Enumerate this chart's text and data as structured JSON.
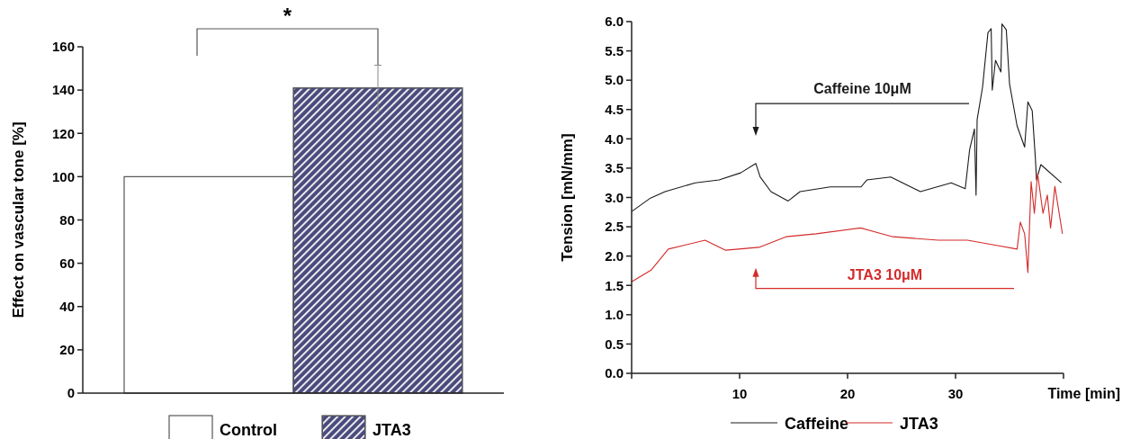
{
  "chart_data": [
    {
      "type": "bar",
      "categories": [
        null,
        null
      ],
      "ylabel": "Effect on vascular tone [%]",
      "ylim": [
        0,
        160
      ],
      "yticks": [
        0,
        20,
        40,
        60,
        80,
        100,
        120,
        140,
        160
      ],
      "tick_labels": "y",
      "legend": "bottom",
      "annotations": [
        "*"
      ],
      "series": [
        {
          "name": "Control",
          "color": "#ffffff",
          "values": [
            100,
            null
          ]
        },
        {
          "name": "JTA3",
          "color": "#4b4b7d",
          "values": [
            null,
            141
          ],
          "errors": [
            null,
            10.5
          ]
        }
      ]
    },
    {
      "type": "line",
      "ylabel": "Tension [mN/mm]",
      "xlabel": "Time [min]",
      "xlim": [
        0,
        40
      ],
      "ylim": [
        0,
        6
      ],
      "xticks": [
        {
          "value": 0,
          "label": null
        },
        10,
        20,
        30,
        {
          "value": 40,
          "label": null
        }
      ],
      "yticks": [
        {
          "value": 0,
          "label": "0.0"
        },
        {
          "value": 0.5,
          "label": "0.5"
        },
        {
          "value": 1,
          "label": "1.0"
        },
        {
          "value": 1.5,
          "label": "1.5"
        },
        {
          "value": 2,
          "label": "2.0"
        },
        {
          "value": 2.5,
          "label": "2.5"
        },
        {
          "value": 3,
          "label": "3.0"
        },
        {
          "value": 3.5,
          "label": "3.5"
        },
        {
          "value": 4,
          "label": "4.0"
        },
        {
          "value": 4.5,
          "label": "4.5"
        },
        {
          "value": 5,
          "label": "5.0"
        },
        {
          "value": 5.5,
          "label": "5.5"
        },
        {
          "value": 6,
          "label": "6.0"
        }
      ],
      "legend": "bottom",
      "annotations": [
        "Caffeine 10μM",
        "JTA3 10μM"
      ],
      "series": [
        {
          "name": "Caffeine",
          "color": "#1a1a1a",
          "x": [
            0,
            1.75,
            3.1,
            5.9,
            8.1,
            10.1,
            11.5,
            11.9,
            12.9,
            14.5,
            15.6,
            18.4,
            21.25,
            21.8,
            24,
            26.75,
            29.6,
            30.9,
            31.3,
            31.75,
            31.9,
            32,
            32.5,
            33,
            33.3,
            33.4,
            33.7,
            34.2,
            34.3,
            34.7,
            35,
            35.7,
            36.4,
            36.7,
            37.1,
            37.4,
            37.5,
            37.9,
            39.8
          ],
          "values": [
            2.76,
            2.99,
            3.1,
            3.25,
            3.3,
            3.42,
            3.58,
            3.35,
            3.1,
            2.94,
            3.1,
            3.18,
            3.18,
            3.3,
            3.35,
            3.1,
            3.25,
            3.15,
            3.81,
            4.17,
            3.04,
            4.33,
            4.88,
            5.81,
            5.88,
            4.83,
            5.34,
            5.14,
            5.96,
            5.86,
            4.94,
            4.22,
            3.86,
            4.63,
            4.48,
            3.65,
            3.3,
            3.56,
            3.25
          ]
        },
        {
          "name": "JTA3",
          "color": "#d42a2a",
          "x": [
            0,
            1.8,
            3.4,
            6.8,
            8.7,
            11.8,
            14.3,
            17.1,
            21.2,
            24.2,
            28.4,
            31.1,
            33.9,
            35.7,
            36,
            36.4,
            36.7,
            37,
            37.3,
            37.6,
            38.1,
            38.5,
            38.8,
            39.2,
            39.9
          ],
          "values": [
            1.56,
            1.76,
            2.12,
            2.27,
            2.1,
            2.15,
            2.33,
            2.38,
            2.48,
            2.33,
            2.27,
            2.27,
            2.18,
            2.12,
            2.58,
            2.38,
            1.72,
            3.27,
            2.73,
            3.41,
            2.73,
            3.04,
            2.48,
            3.19,
            2.38
          ]
        }
      ]
    }
  ]
}
